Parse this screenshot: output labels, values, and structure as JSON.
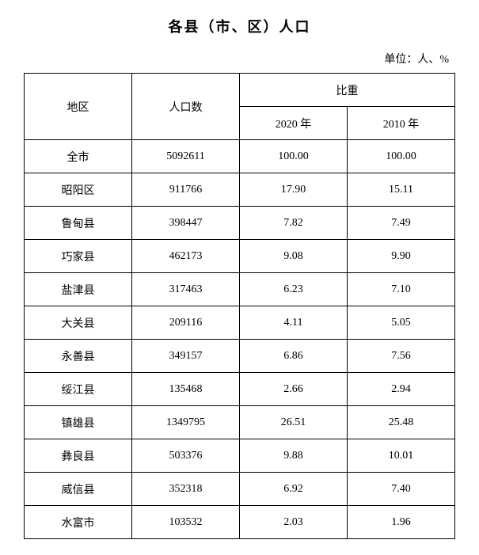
{
  "title": "各县（市、区）人口",
  "unit_label": "单位：人、%",
  "headers": {
    "region": "地区",
    "population": "人口数",
    "proportion": "比重",
    "year2020": "2020 年",
    "year2010": "2010 年"
  },
  "rows": [
    {
      "region": "全市",
      "population": "5092611",
      "y2020": "100.00",
      "y2010": "100.00"
    },
    {
      "region": "昭阳区",
      "population": "911766",
      "y2020": "17.90",
      "y2010": "15.11"
    },
    {
      "region": "鲁甸县",
      "population": "398447",
      "y2020": "7.82",
      "y2010": "7.49"
    },
    {
      "region": "巧家县",
      "population": "462173",
      "y2020": "9.08",
      "y2010": "9.90"
    },
    {
      "region": "盐津县",
      "population": "317463",
      "y2020": "6.23",
      "y2010": "7.10"
    },
    {
      "region": "大关县",
      "population": "209116",
      "y2020": "4.11",
      "y2010": "5.05"
    },
    {
      "region": "永善县",
      "population": "349157",
      "y2020": "6.86",
      "y2010": "7.56"
    },
    {
      "region": "绥江县",
      "population": "135468",
      "y2020": "2.66",
      "y2010": "2.94"
    },
    {
      "region": "镇雄县",
      "population": "1349795",
      "y2020": "26.51",
      "y2010": "25.48"
    },
    {
      "region": "彝良县",
      "population": "503376",
      "y2020": "9.88",
      "y2010": "10.01"
    },
    {
      "region": "威信县",
      "population": "352318",
      "y2020": "6.92",
      "y2010": "7.40"
    },
    {
      "region": "水富市",
      "population": "103532",
      "y2020": "2.03",
      "y2010": "1.96"
    }
  ]
}
